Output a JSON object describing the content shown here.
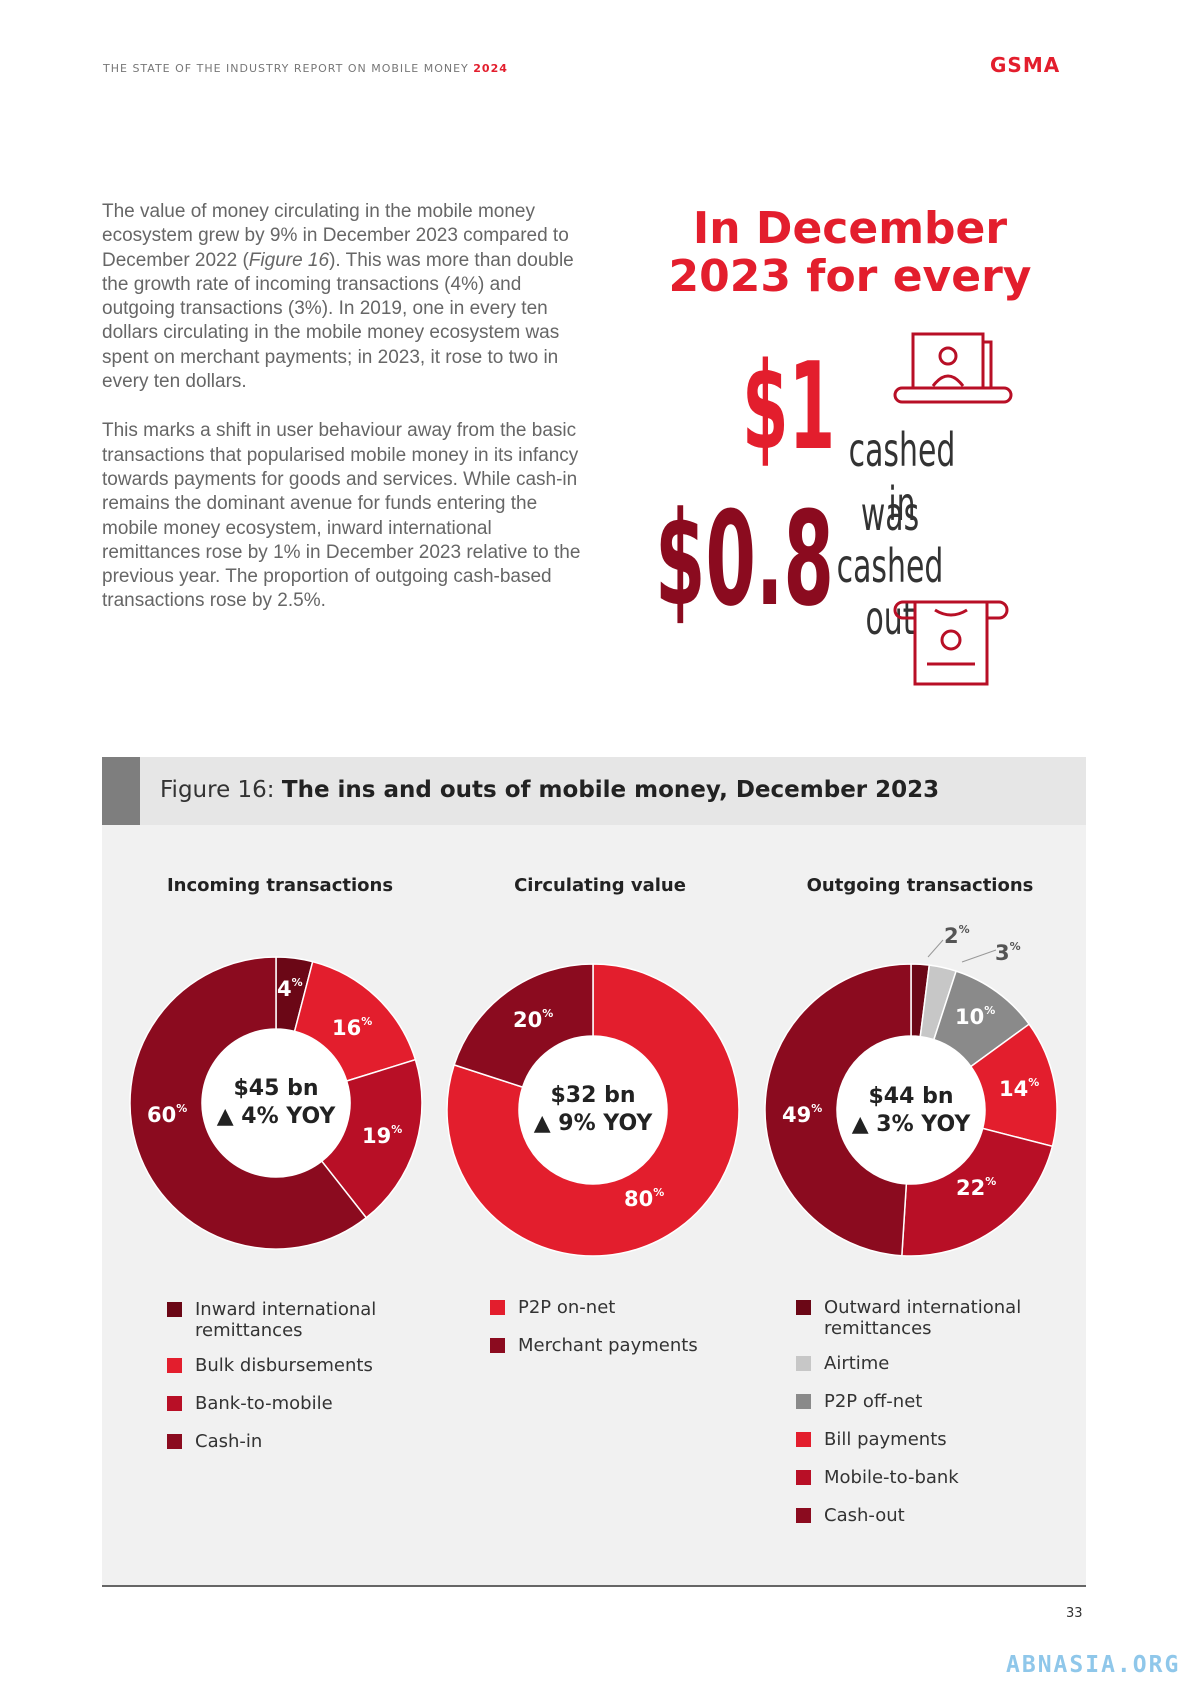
{
  "header": {
    "title": "THE STATE OF THE INDUSTRY REPORT ON MOBILE MONEY",
    "year": "2024",
    "logo": "GSMA"
  },
  "intro": {
    "p1_a": "The value of money circulating in the mobile money ecosystem grew by 9% in December 2023 compared to December 2022 (",
    "p1_ref": "Figure 16",
    "p1_b": "). This was more than double the growth rate of incoming transactions (4%) and outgoing transactions (3%). In 2019, one in every ten dollars circulating in the mobile money ecosystem was spent on merchant payments; in 2023, it rose to two in every ten dollars.",
    "p2": "This marks a shift in user behaviour away from the basic transactions that popularised mobile money in its infancy towards payments for goods and services. While cash-in remains the dominant avenue for funds entering the mobile money ecosystem, inward international remittances rose by 1% in December 2023 relative to the previous year. The proportion of outgoing cash-based transactions rose by 2.5%."
  },
  "highlight": {
    "title": "In December 2023 for every",
    "amount_in": "$1",
    "label_in": "cashed in",
    "amount_out": "$0.8",
    "label_out": "was cashed out",
    "icon_in": "cash-in-icon",
    "icon_out": "cash-out-icon"
  },
  "figure": {
    "number": "Figure 16:",
    "title": "The ins and outs of mobile money, December 2023"
  },
  "colors": {
    "red": "#e31e2d",
    "crimson": "#b80f26",
    "maroon": "#8b0b1f",
    "darkmaroon": "#6b0716",
    "lightgrey": "#c7c7c7",
    "grey": "#8a8a8a"
  },
  "chart_data": [
    {
      "type": "pie",
      "title": "Incoming transactions",
      "center": {
        "value": "$45 bn",
        "yoy": "4% YOY"
      },
      "categories": [
        "Inward international remittances",
        "Bulk disbursements",
        "Bank-to-mobile",
        "Cash-in"
      ],
      "values": [
        4,
        16,
        19,
        60
      ],
      "labels": [
        "4",
        "16",
        "19",
        "60"
      ],
      "colors": [
        "#6b0716",
        "#e31e2d",
        "#b80f26",
        "#8b0b1f"
      ]
    },
    {
      "type": "pie",
      "title": "Circulating value",
      "center": {
        "value": "$32 bn",
        "yoy": "9% YOY"
      },
      "categories": [
        "P2P on-net",
        "Merchant payments"
      ],
      "values": [
        80,
        20
      ],
      "labels": [
        "80",
        "20"
      ],
      "colors": [
        "#e31e2d",
        "#8b0b1f"
      ]
    },
    {
      "type": "pie",
      "title": "Outgoing transactions",
      "center": {
        "value": "$44 bn",
        "yoy": "3% YOY"
      },
      "categories": [
        "Outward international remittances",
        "Airtime",
        "P2P off-net",
        "Bill payments",
        "Mobile-to-bank",
        "Cash-out"
      ],
      "values": [
        2,
        3,
        10,
        14,
        22,
        49
      ],
      "labels": [
        "2",
        "3",
        "10",
        "14",
        "22",
        "49"
      ],
      "colors": [
        "#6b0716",
        "#c7c7c7",
        "#8a8a8a",
        "#e31e2d",
        "#b80f26",
        "#8b0b1f"
      ]
    }
  ],
  "percent_sign": "%",
  "yoy_arrow": "▲",
  "page_number": "33",
  "watermark": "ABNASIA.ORG"
}
